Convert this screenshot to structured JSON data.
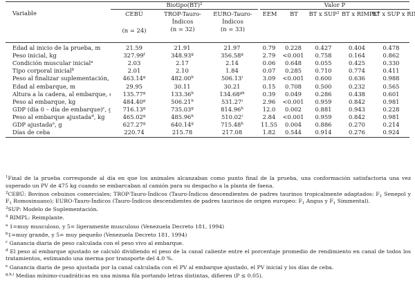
{
  "header": {
    "variable": "Variable",
    "biotipo": "Biotipo(BT)",
    "biotipo_sup": "2",
    "valor_p": "Valor P",
    "groups": [
      {
        "name": "CEBÚ",
        "n": "(n = 24)"
      },
      {
        "name1": "TROP-Tauro-",
        "name2": "Índicos",
        "n": "(n = 32)"
      },
      {
        "name1": "EURO-Tauro-",
        "name2": "Índicos",
        "n": "(n = 33)"
      }
    ],
    "eem": "EEM",
    "bt": "BT",
    "btxsup": "BT x SUP",
    "btxsup_sup": "3",
    "btxrimpl": "BT x RIMPL",
    "btxrimpl_sup": "4",
    "btxsupxrimpl": "BT x SUP x RIMPL"
  },
  "rows": [
    {
      "label": "Edad al inicio de la prueba, m",
      "lsup": "",
      "c1": "21.59",
      "s1": "",
      "c2": "21.91",
      "s2": "",
      "c3": "21.97",
      "s3": "",
      "eem": "0.79",
      "bt": "0.228",
      "btsup": "0.427",
      "btr": "0.404",
      "btsr": "0.478"
    },
    {
      "label": "Peso inicial, kg",
      "lsup": "",
      "c1": "327.99",
      "s1": "f",
      "c2": "348.93",
      "s2": "g",
      "c3": "356.58",
      "s3": "g",
      "eem": "2.79",
      "bt": "<0.001",
      "btsup": "0.758",
      "btr": "0.164",
      "btsr": "0.862"
    },
    {
      "label": "Condición muscular inicial",
      "lsup": "a",
      "c1": "2.03",
      "s1": "",
      "c2": "2.17",
      "s2": "",
      "c3": "2.14",
      "s3": "",
      "eem": "0.06",
      "bt": "0.648",
      "btsup": "0.055",
      "btr": "0.425",
      "btsr": "0.330"
    },
    {
      "label": "Tipo corporal inicial",
      "lsup": "b",
      "c1": "2.01",
      "s1": "",
      "c2": "2.10",
      "s2": "",
      "c3": "1.84",
      "s3": "",
      "eem": "0.07",
      "bt": "0.285",
      "btsup": "0.710",
      "btr": "0.774",
      "btsr": "0.411"
    },
    {
      "label": "Peso al finalizar suplementación, kg",
      "lsup": "",
      "c1": "463.14",
      "s1": "g",
      "c2": "482.00",
      "s2": "h",
      "c3": "506.13",
      "s3": "i",
      "eem": "3.09",
      "bt": "<0.001",
      "btsup": "0.600",
      "btr": "0.636",
      "btsr": "0.988"
    },
    {
      "label": "Edad al embarque, m",
      "lsup": "",
      "c1": "29.95",
      "s1": "",
      "c2": "30.11",
      "s2": "",
      "c3": "30.21",
      "s3": "",
      "eem": "0.15",
      "bt": "0.708",
      "btsup": "0.500",
      "btr": "0.232",
      "btsr": "0.565"
    },
    {
      "label": "Altura a la cadera, al embarque, cm",
      "lsup": "",
      "c1": "135.77",
      "s1": "g",
      "c2": "133.36",
      "s2": "h",
      "c3": "134.68",
      "s3": "gh",
      "eem": "0.39",
      "bt": "0.049",
      "btsup": "0.286",
      "btr": "0.438",
      "btsr": "0.601"
    },
    {
      "label": "Peso al embarque, kg",
      "lsup": "",
      "c1": "484.40",
      "s1": "g",
      "c2": "506.21",
      "s2": "h",
      "c3": "531.27",
      "s3": "i",
      "eem": "2.96",
      "bt": "<0.001",
      "btsup": "0.959",
      "btr": "0.842",
      "btsr": "0.981"
    },
    {
      "label": "GDP (día 0 – día de embarque)",
      "lsup": "c",
      "label_tail": ", g",
      "c1": "716.13",
      "s1": "g",
      "c2": "735.03",
      "s2": "g",
      "c3": "814.96",
      "s3": "h",
      "eem": "12.0",
      "bt": "0.002",
      "btsup": "0.881",
      "btr": "0.943",
      "btsr": "0.228"
    },
    {
      "label": "Peso al embarque ajustada",
      "lsup": "d",
      "label_tail": ", kg",
      "c1": "465.02",
      "s1": "g",
      "c2": "485.96",
      "s2": "h",
      "c3": "510.02",
      "s3": "i",
      "eem": "2.84",
      "bt": "<0.001",
      "btsup": "0.959",
      "btr": "0.842",
      "btsr": "0.981"
    },
    {
      "label": "GDP ajustada",
      "lsup": "e",
      "label_tail": ", g",
      "c1": "627.27",
      "s1": "g",
      "c2": "640.14",
      "s2": "g",
      "c3": "715.48",
      "s3": "h",
      "eem": "11.55",
      "bt": "0.004",
      "btsup": "0.886",
      "btr": "0.270",
      "btsr": "0.214"
    },
    {
      "label": "Días de ceba",
      "lsup": "",
      "c1": "220.74",
      "s1": "",
      "c2": "215.78",
      "s2": "",
      "c3": "217.08",
      "s3": "",
      "eem": "1.82",
      "bt": "0.544",
      "btsup": "0.914",
      "btr": "0.276",
      "btsr": "0.924"
    }
  ],
  "notes": {
    "n1_sup": "1",
    "n1": "Final de la prueba corresponde al día en que los animales alcanzaban como punto final de la prueba, una conformación satisfactoria una vez superado un PV de 475 kg cuando se embarcaban al camión para su despacho a la planta de faena.",
    "n2_sup": "2",
    "n2_a": "CEBÚ: Bovinos cebuinos comerciales; TROP-Tauro-Índicos (Tauro-Índicos descendientes de padres taurinos tropicalmente adaptados: F",
    "n2_sub1": "1",
    "n2_b": " Senepol y F",
    "n2_sub2": "1",
    "n2_c": " Romosinuano); EURO-Tauro-Índicos (Tauro-Índicos descendientes de padres taurinos de origen europeo: F",
    "n2_sub3": "1",
    "n2_d": " Angus y F",
    "n2_sub4": "1",
    "n2_e": " Simmental).",
    "n3_sup": "3",
    "n3": "SUP: Modelo de Suplementación.",
    "n4_sup": "4",
    "n4": " RIMPL: Reimplante.",
    "na_sup": "a",
    "na": " 1=muy musculoso, y 5= ligeramente musculoso (Venezuela Decreto 181, 1994)",
    "nb_sup": "b",
    "nb": "1=muy grande, y 5= muy pequeño (Venezuela Decreto 181, 1994)",
    "nc_sup": "c",
    "nc": " Ganancia diaria de peso calculada con el peso vivo al embarque.",
    "nd_sup": "d",
    "nd": " El peso al embarque ajustado se calculó dividiendo el peso de la canal caliente entre el porcentaje promedio de rendimiento en canal de todos los tratamientos, estimando una merma por transporte del 4.0 %.",
    "ne_sup": "e",
    "ne": " Ganancia diaria de peso ajustada por la canal calculada con el PV al embarque ajustado, el PV inicial y los días de ceba.",
    "ngh_sup": "g,h,i",
    "ngh": " Medias mínimo-cuadráticas en una misma fila portando letras distintas, difieren (P ≤ 0.05)."
  }
}
